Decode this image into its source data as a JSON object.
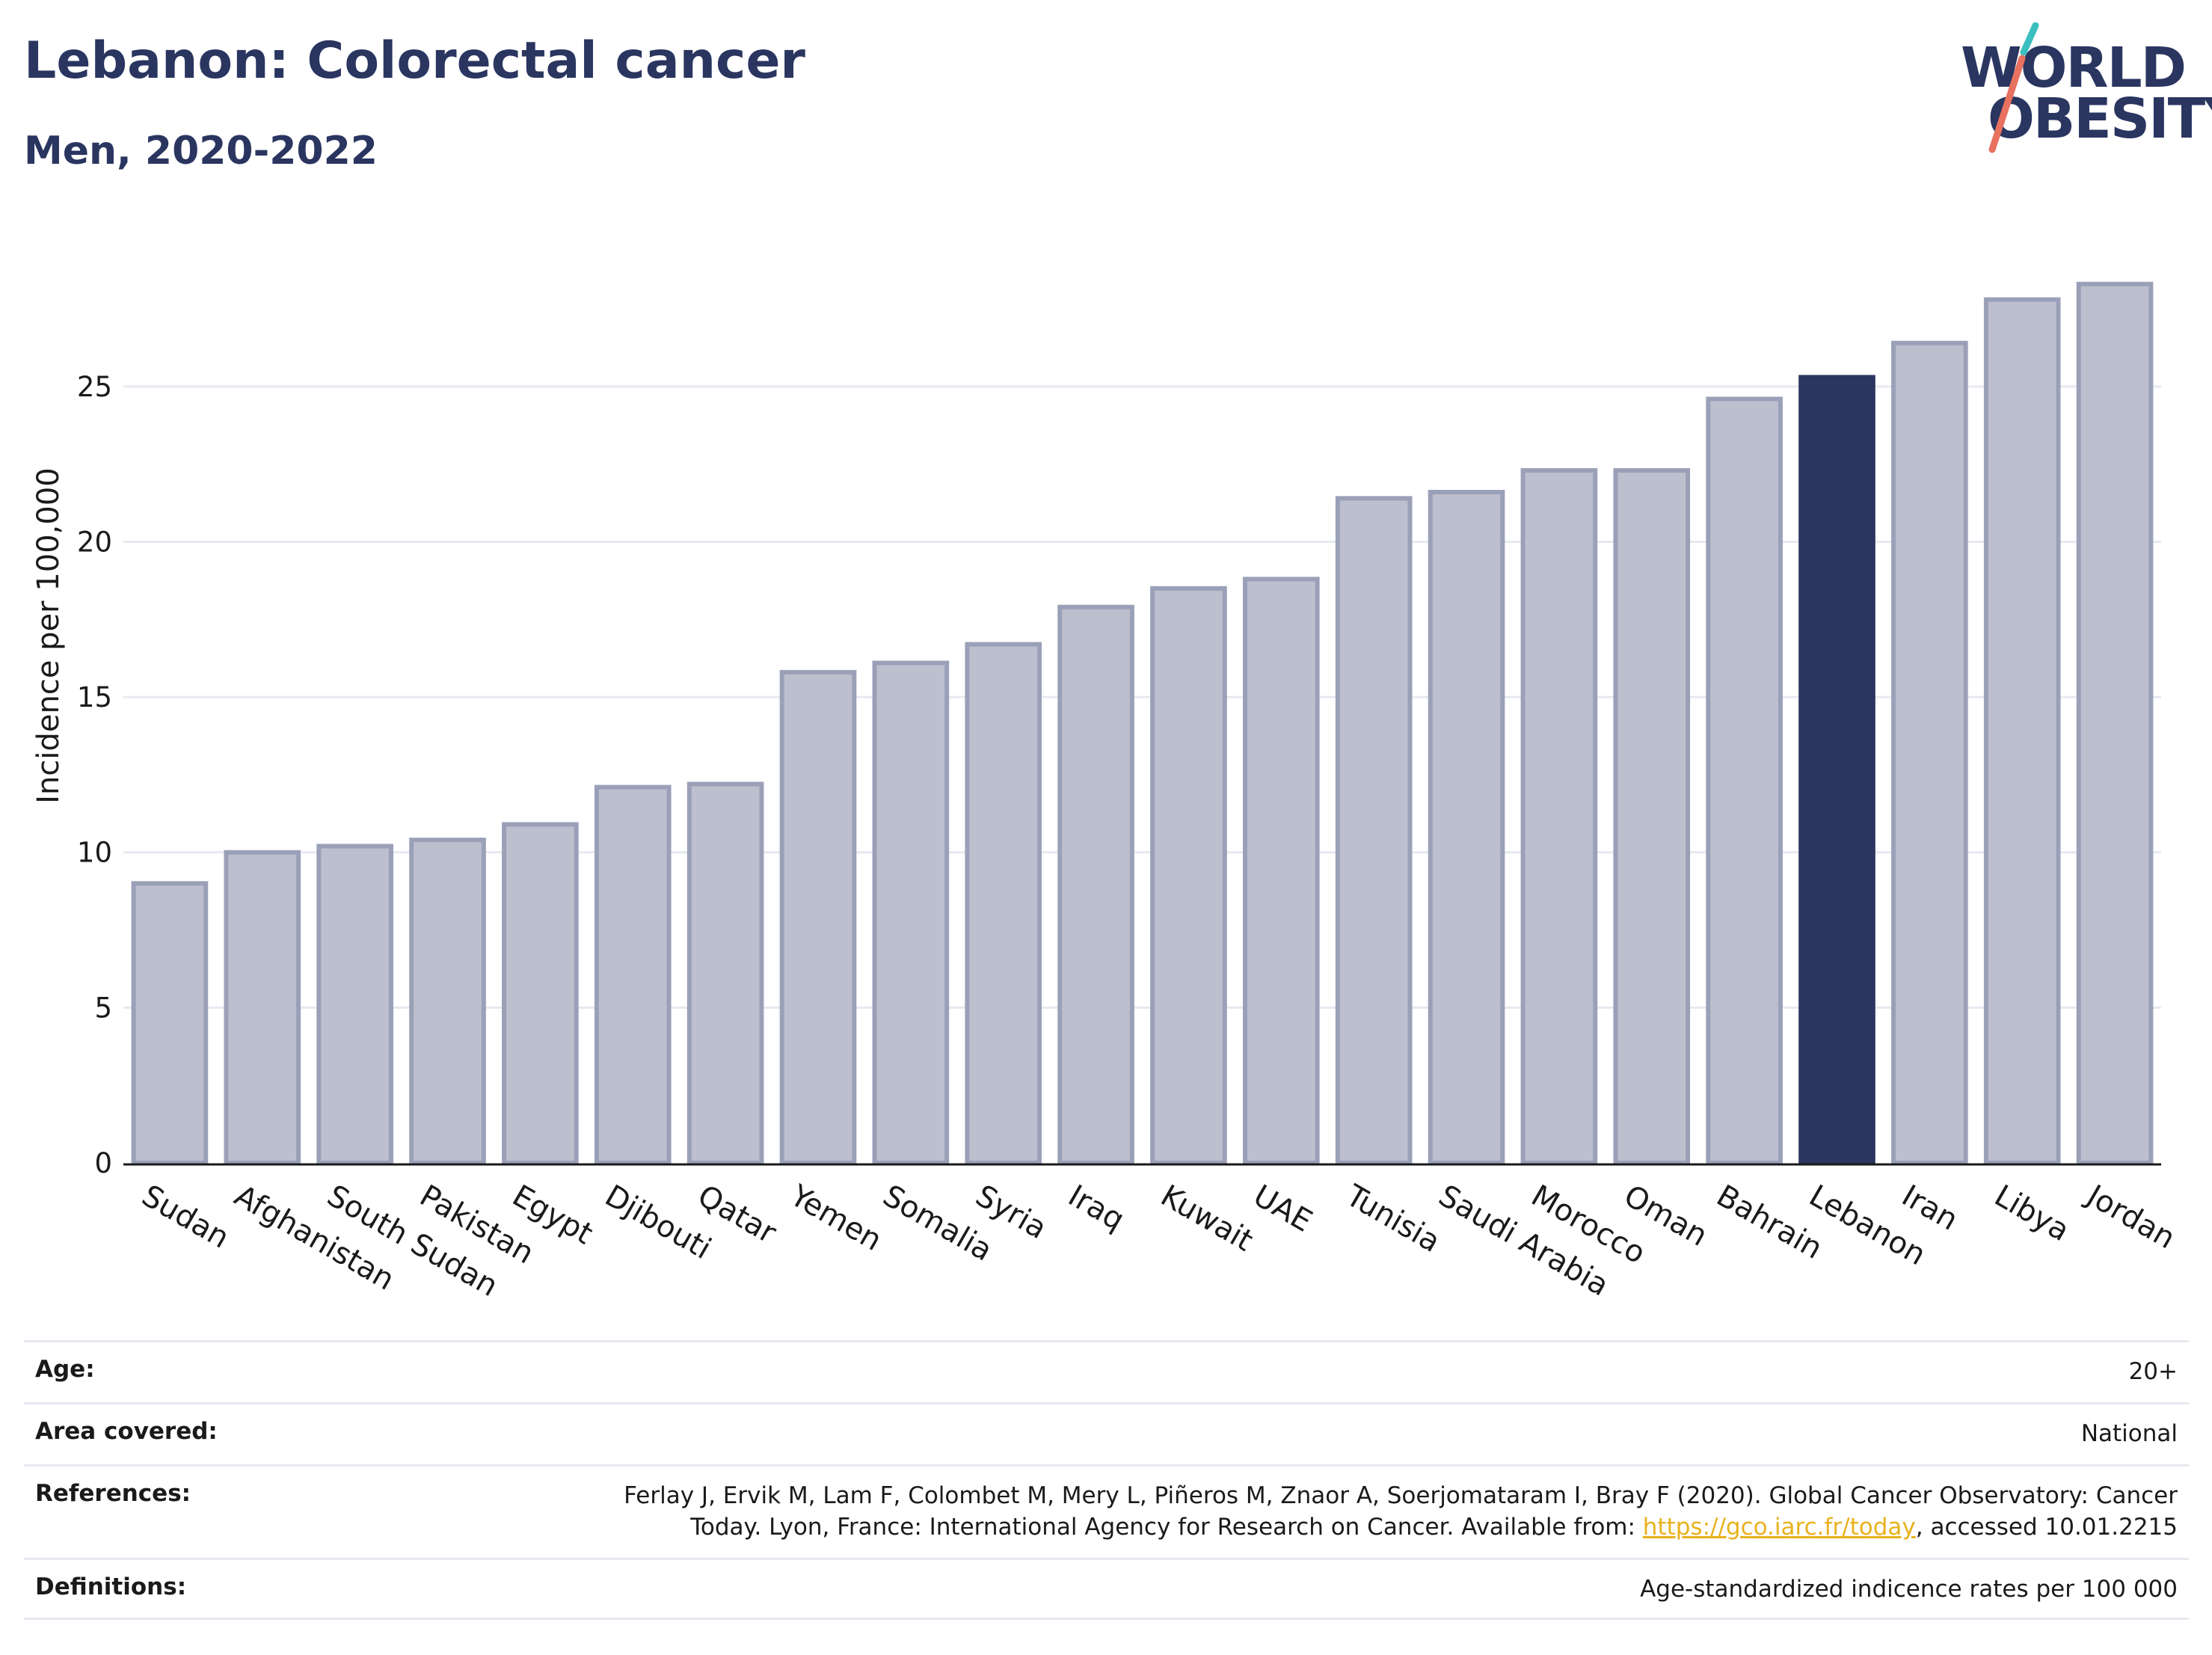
{
  "header": {
    "title": "Lebanon: Colorectal cancer",
    "subtitle": "Men, 2020-2022"
  },
  "logo": {
    "line1": "WORLD",
    "line2": "OBESITY"
  },
  "colors": {
    "highlight": "#2a3560",
    "bar_fill": "#bcc0ce",
    "bar_stroke": "#9aa0b8",
    "accent_teal": "#3cbfbf",
    "accent_coral": "#e8715f",
    "link": "#e8b21e"
  },
  "chart_data": {
    "type": "bar",
    "title": "Lebanon: Colorectal cancer",
    "subtitle": "Men, 2020-2022",
    "xlabel": "",
    "ylabel": "Incidence per 100,000",
    "categories": [
      "Sudan",
      "Afghanistan",
      "South Sudan",
      "Pakistan",
      "Egypt",
      "Djibouti",
      "Qatar",
      "Yemen",
      "Somalia",
      "Syria",
      "Iraq",
      "Kuwait",
      "UAE",
      "Tunisia",
      "Saudi Arabia",
      "Morocco",
      "Oman",
      "Bahrain",
      "Lebanon",
      "Iran",
      "Libya",
      "Jordan"
    ],
    "values": [
      9.0,
      10.0,
      10.2,
      10.4,
      10.9,
      12.1,
      12.2,
      15.8,
      16.1,
      16.7,
      17.9,
      18.5,
      18.8,
      21.4,
      21.6,
      22.3,
      22.3,
      24.6,
      25.3,
      26.4,
      27.8,
      28.3
    ],
    "highlight": "Lebanon",
    "yticks": [
      "0",
      "5",
      "10",
      "15",
      "20",
      "25"
    ],
    "ylim": [
      0,
      29.5
    ],
    "grid": true
  },
  "meta": {
    "age_label": "Age:",
    "age_value": "20+",
    "area_label": "Area covered:",
    "area_value": "National",
    "references_label": "References:",
    "references_line1": "Ferlay J, Ervik M, Lam F, Colombet M, Mery L, Piñeros M, Znaor A, Soerjomataram I, Bray F (2020). Global Cancer Observatory: Cancer",
    "references_line2_pre": "Today. Lyon, France: International Agency for Research on Cancer. Available from: ",
    "references_link": "https://gco.iarc.fr/today",
    "references_line2_post": ", accessed 10.01.2215",
    "definitions_label": "Definitions:",
    "definitions_value": "Age-standardized indicence rates per 100 000"
  }
}
